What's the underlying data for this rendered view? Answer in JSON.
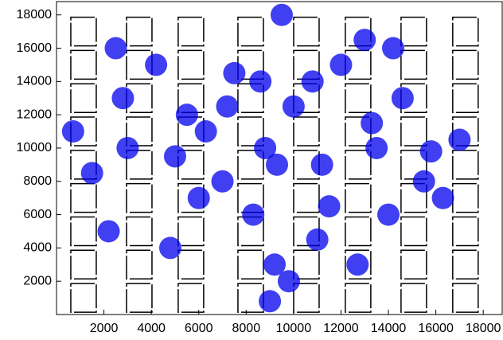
{
  "chart_data": {
    "type": "scatter",
    "xlim": [
      0,
      18800
    ],
    "ylim": [
      0,
      18800
    ],
    "xticks": [
      2000,
      4000,
      6000,
      8000,
      10000,
      12000,
      14000,
      16000,
      18000
    ],
    "yticks": [
      2000,
      4000,
      6000,
      8000,
      10000,
      12000,
      14000,
      16000,
      18000
    ],
    "grid": false,
    "series": [
      {
        "color": "#000000",
        "x": [
          1140,
          1140,
          1140,
          1140,
          1140,
          1140,
          1140,
          1140,
          1140,
          3490,
          3490,
          3490,
          3490,
          3490,
          3490,
          3490,
          3490,
          3490,
          5670,
          5670,
          5670,
          5670,
          5670,
          5670,
          5670,
          5670,
          5670,
          8190,
          8190,
          8190,
          8190,
          8190,
          8190,
          8190,
          8190,
          8190,
          10540,
          10540,
          10540,
          10540,
          10540,
          10540,
          10540,
          10540,
          10540,
          12720,
          12720,
          12720,
          12720,
          12720,
          12720,
          12720,
          12720,
          12720,
          15070,
          15070,
          15070,
          15070,
          15070,
          15070,
          15070,
          15070,
          15070,
          17250,
          17250,
          17250,
          17250,
          17250,
          17250,
          17250,
          17250,
          17250
        ],
        "values": [
          1000,
          3000,
          5000,
          7000,
          9000,
          11000,
          13000,
          15000,
          17000,
          1000,
          3000,
          5000,
          7000,
          9000,
          11000,
          13000,
          15000,
          17000,
          1000,
          3000,
          5000,
          7000,
          9000,
          11000,
          13000,
          15000,
          17000,
          1000,
          3000,
          5000,
          7000,
          9000,
          11000,
          13000,
          15000,
          17000,
          1000,
          3000,
          5000,
          7000,
          9000,
          11000,
          13000,
          15000,
          17000,
          1000,
          3000,
          5000,
          7000,
          9000,
          11000,
          13000,
          15000,
          17000,
          1000,
          3000,
          5000,
          7000,
          9000,
          11000,
          13000,
          15000,
          17000,
          1000,
          3000,
          5000,
          7000,
          9000,
          11000,
          13000,
          15000,
          17000
        ]
      },
      {
        "color": "#0000ee",
        "x": [
          2500,
          3000,
          4200,
          5000,
          6300,
          7000,
          7500,
          8800,
          9500,
          9200,
          10000,
          11200,
          12000,
          13500,
          14200,
          14000,
          15800,
          16300,
          700,
          1500,
          2200,
          4800,
          6000,
          7200,
          8300,
          9000,
          10800,
          11500,
          12700,
          13300,
          14600,
          15500,
          2800,
          5500,
          9300,
          9800,
          13000,
          17000,
          8600,
          11000
        ],
        "values": [
          16000,
          10000,
          15000,
          9500,
          11000,
          8000,
          14500,
          10000,
          18000,
          3000,
          12500,
          9000,
          15000,
          10000,
          16000,
          6000,
          9800,
          7000,
          11000,
          8500,
          5000,
          4000,
          7000,
          12500,
          6000,
          800,
          14000,
          6500,
          3000,
          11500,
          13000,
          8000,
          13000,
          12000,
          9000,
          2000,
          16500,
          10500,
          14000,
          4500
        ]
      }
    ]
  }
}
